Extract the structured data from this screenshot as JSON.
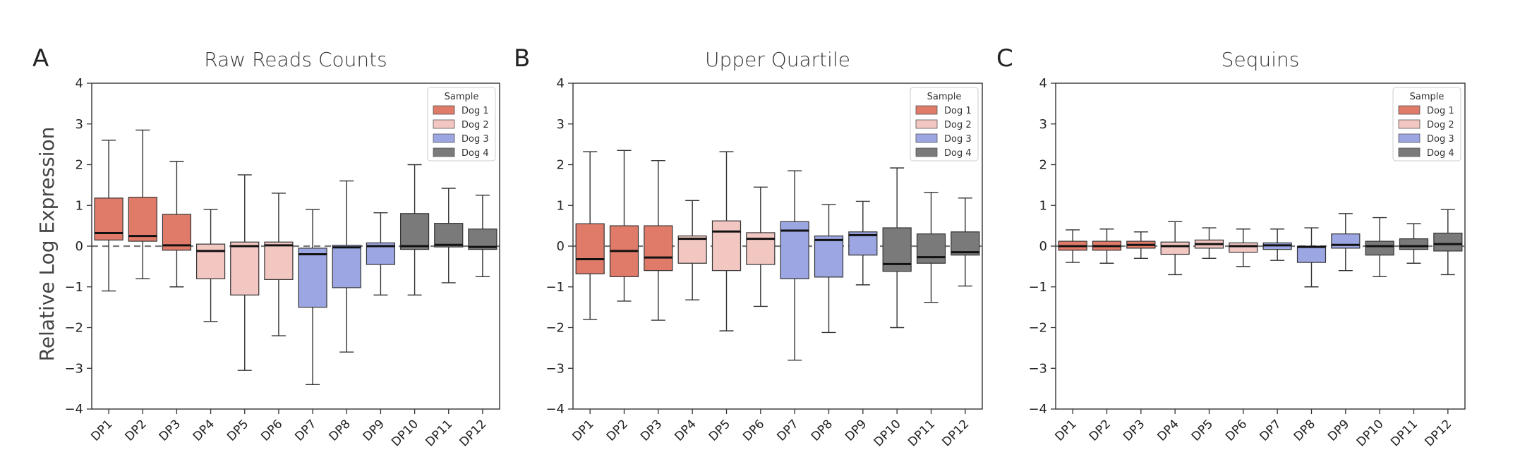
{
  "figure": {
    "ylabel": "Relative Log Expression",
    "legend": {
      "title": "Sample",
      "entries": [
        {
          "label": "Dog 1",
          "color": "#E07B6A"
        },
        {
          "label": "Dog 2",
          "color": "#F2C6C1"
        },
        {
          "label": "Dog 3",
          "color": "#9BA6E2"
        },
        {
          "label": "Dog 4",
          "color": "#7A7A7A"
        }
      ],
      "placement": "top-right"
    }
  },
  "chart_data": [
    {
      "type": "boxplot",
      "letter": "A",
      "title": "Raw Reads Counts",
      "ylim": [
        -4,
        4
      ],
      "yticks": [
        "4",
        "3",
        "2",
        "1",
        "0",
        "−1",
        "−2",
        "−3",
        "−4"
      ],
      "categories": [
        "DP1",
        "DP2",
        "DP3",
        "DP4",
        "DP5",
        "DP6",
        "DP7",
        "DP8",
        "DP9",
        "DP10",
        "DP11",
        "DP12"
      ],
      "groups": [
        "Dog 1",
        "Dog 1",
        "Dog 1",
        "Dog 2",
        "Dog 2",
        "Dog 2",
        "Dog 3",
        "Dog 3",
        "Dog 3",
        "Dog 4",
        "Dog 4",
        "Dog 4"
      ],
      "reference_line": 0,
      "boxes": [
        {
          "min": -1.1,
          "q1": 0.15,
          "median": 0.32,
          "q3": 1.18,
          "max": 2.6
        },
        {
          "min": -0.8,
          "q1": 0.12,
          "median": 0.25,
          "q3": 1.2,
          "max": 2.85
        },
        {
          "min": -1.0,
          "q1": -0.1,
          "median": 0.02,
          "q3": 0.78,
          "max": 2.08
        },
        {
          "min": -1.85,
          "q1": -0.8,
          "median": -0.12,
          "q3": 0.05,
          "max": 0.9
        },
        {
          "min": -3.05,
          "q1": -1.2,
          "median": 0.0,
          "q3": 0.1,
          "max": 1.75
        },
        {
          "min": -2.2,
          "q1": -0.82,
          "median": 0.02,
          "q3": 0.1,
          "max": 1.3
        },
        {
          "min": -3.4,
          "q1": -1.5,
          "median": -0.2,
          "q3": -0.05,
          "max": 0.9
        },
        {
          "min": -2.6,
          "q1": -1.02,
          "median": -0.03,
          "q3": 0.02,
          "max": 1.6
        },
        {
          "min": -1.2,
          "q1": -0.45,
          "median": 0.0,
          "q3": 0.08,
          "max": 0.82
        },
        {
          "min": -1.2,
          "q1": -0.08,
          "median": 0.0,
          "q3": 0.8,
          "max": 2.0
        },
        {
          "min": -0.9,
          "q1": -0.02,
          "median": 0.03,
          "q3": 0.56,
          "max": 1.42
        },
        {
          "min": -0.75,
          "q1": -0.08,
          "median": -0.02,
          "q3": 0.42,
          "max": 1.25
        }
      ]
    },
    {
      "type": "boxplot",
      "letter": "B",
      "title": "Upper Quartile",
      "ylim": [
        -4,
        4
      ],
      "yticks": [
        "4",
        "3",
        "2",
        "1",
        "0",
        "−1",
        "−2",
        "−3",
        "−4"
      ],
      "categories": [
        "DP1",
        "DP2",
        "DP3",
        "DP4",
        "DP5",
        "DP6",
        "DP7",
        "DP8",
        "DP9",
        "DP10",
        "DP11",
        "DP12"
      ],
      "groups": [
        "Dog 1",
        "Dog 1",
        "Dog 1",
        "Dog 2",
        "Dog 2",
        "Dog 2",
        "Dog 3",
        "Dog 3",
        "Dog 3",
        "Dog 4",
        "Dog 4",
        "Dog 4"
      ],
      "reference_line": 0,
      "boxes": [
        {
          "min": -1.8,
          "q1": -0.68,
          "median": -0.32,
          "q3": 0.55,
          "max": 2.32
        },
        {
          "min": -1.35,
          "q1": -0.75,
          "median": -0.12,
          "q3": 0.5,
          "max": 2.35
        },
        {
          "min": -1.82,
          "q1": -0.6,
          "median": -0.28,
          "q3": 0.5,
          "max": 2.1
        },
        {
          "min": -1.32,
          "q1": -0.42,
          "median": 0.18,
          "q3": 0.25,
          "max": 1.12
        },
        {
          "min": -2.08,
          "q1": -0.6,
          "median": 0.36,
          "q3": 0.62,
          "max": 2.32
        },
        {
          "min": -1.48,
          "q1": -0.45,
          "median": 0.18,
          "q3": 0.33,
          "max": 1.45
        },
        {
          "min": -2.8,
          "q1": -0.8,
          "median": 0.38,
          "q3": 0.6,
          "max": 1.85
        },
        {
          "min": -2.12,
          "q1": -0.76,
          "median": 0.15,
          "q3": 0.25,
          "max": 1.02
        },
        {
          "min": -0.95,
          "q1": -0.22,
          "median": 0.27,
          "q3": 0.35,
          "max": 1.1
        },
        {
          "min": -2.0,
          "q1": -0.62,
          "median": -0.44,
          "q3": 0.45,
          "max": 1.92
        },
        {
          "min": -1.38,
          "q1": -0.42,
          "median": -0.27,
          "q3": 0.3,
          "max": 1.32
        },
        {
          "min": -0.98,
          "q1": -0.22,
          "median": -0.15,
          "q3": 0.35,
          "max": 1.18
        }
      ]
    },
    {
      "type": "boxplot",
      "letter": "C",
      "title": "Sequins",
      "ylim": [
        -4,
        4
      ],
      "yticks": [
        "4",
        "3",
        "2",
        "1",
        "0",
        "−1",
        "−2",
        "−3",
        "−4"
      ],
      "categories": [
        "DP1",
        "DP2",
        "DP3",
        "DP4",
        "DP5",
        "DP6",
        "DP7",
        "DP8",
        "DP9",
        "DP10",
        "DP11",
        "DP12"
      ],
      "groups": [
        "Dog 1",
        "Dog 1",
        "Dog 1",
        "Dog 2",
        "Dog 2",
        "Dog 2",
        "Dog 3",
        "Dog 3",
        "Dog 3",
        "Dog 4",
        "Dog 4",
        "Dog 4"
      ],
      "reference_line": 0,
      "boxes": [
        {
          "min": -0.4,
          "q1": -0.1,
          "median": 0.0,
          "q3": 0.12,
          "max": 0.4
        },
        {
          "min": -0.42,
          "q1": -0.1,
          "median": 0.0,
          "q3": 0.12,
          "max": 0.42
        },
        {
          "min": -0.3,
          "q1": -0.05,
          "median": 0.03,
          "q3": 0.12,
          "max": 0.35
        },
        {
          "min": -0.7,
          "q1": -0.2,
          "median": 0.0,
          "q3": 0.1,
          "max": 0.6
        },
        {
          "min": -0.3,
          "q1": -0.05,
          "median": 0.05,
          "q3": 0.15,
          "max": 0.45
        },
        {
          "min": -0.5,
          "q1": -0.15,
          "median": 0.0,
          "q3": 0.08,
          "max": 0.42
        },
        {
          "min": -0.35,
          "q1": -0.08,
          "median": 0.02,
          "q3": 0.08,
          "max": 0.42
        },
        {
          "min": -1.0,
          "q1": -0.4,
          "median": -0.02,
          "q3": 0.0,
          "max": 0.45
        },
        {
          "min": -0.6,
          "q1": -0.05,
          "median": 0.03,
          "q3": 0.3,
          "max": 0.8
        },
        {
          "min": -0.75,
          "q1": -0.22,
          "median": 0.0,
          "q3": 0.12,
          "max": 0.7
        },
        {
          "min": -0.42,
          "q1": -0.08,
          "median": 0.0,
          "q3": 0.18,
          "max": 0.55
        },
        {
          "min": -0.7,
          "q1": -0.12,
          "median": 0.05,
          "q3": 0.32,
          "max": 0.9
        }
      ]
    }
  ]
}
